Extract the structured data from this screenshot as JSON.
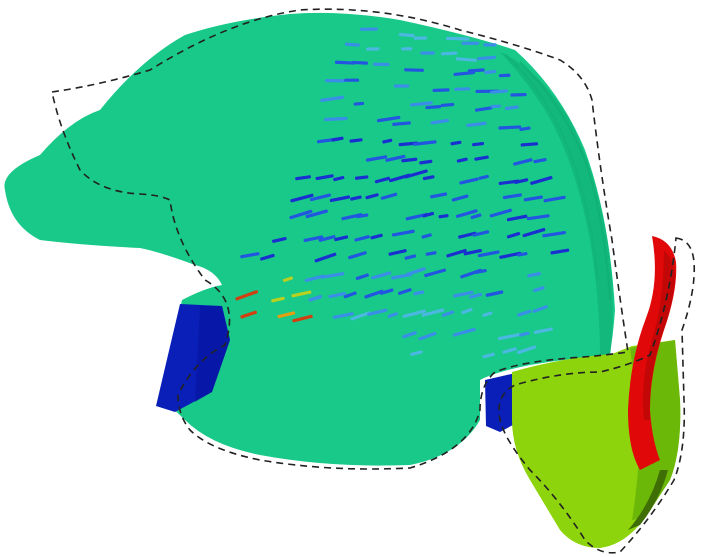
{
  "scene": {
    "background": "#ffffff",
    "colors": {
      "main_body": "#18c98a",
      "main_body_dark": "#12b87c",
      "main_body_edge": "#0fae74",
      "blue_region": "#0a1fb8",
      "blue_region_dark": "#06129a",
      "yellow_green_region": "#8ed40c",
      "yellow_green_dark": "#5a9a06",
      "red_region": "#e00808",
      "red_region_dark": "#a00404",
      "outline": "#222222"
    },
    "components": [
      "main-body-surface",
      "vector-field",
      "left-blue-region",
      "right-blue-region",
      "lower-right-block",
      "red-fin",
      "dashed-outline"
    ],
    "vector_field_palette": [
      "#1a2fd0",
      "#2255e0",
      "#3a8ee8",
      "#4ab8e0",
      "#6ad2c8",
      "#b8d020",
      "#e0a010",
      "#d04010"
    ],
    "outline_style": "dashed"
  }
}
